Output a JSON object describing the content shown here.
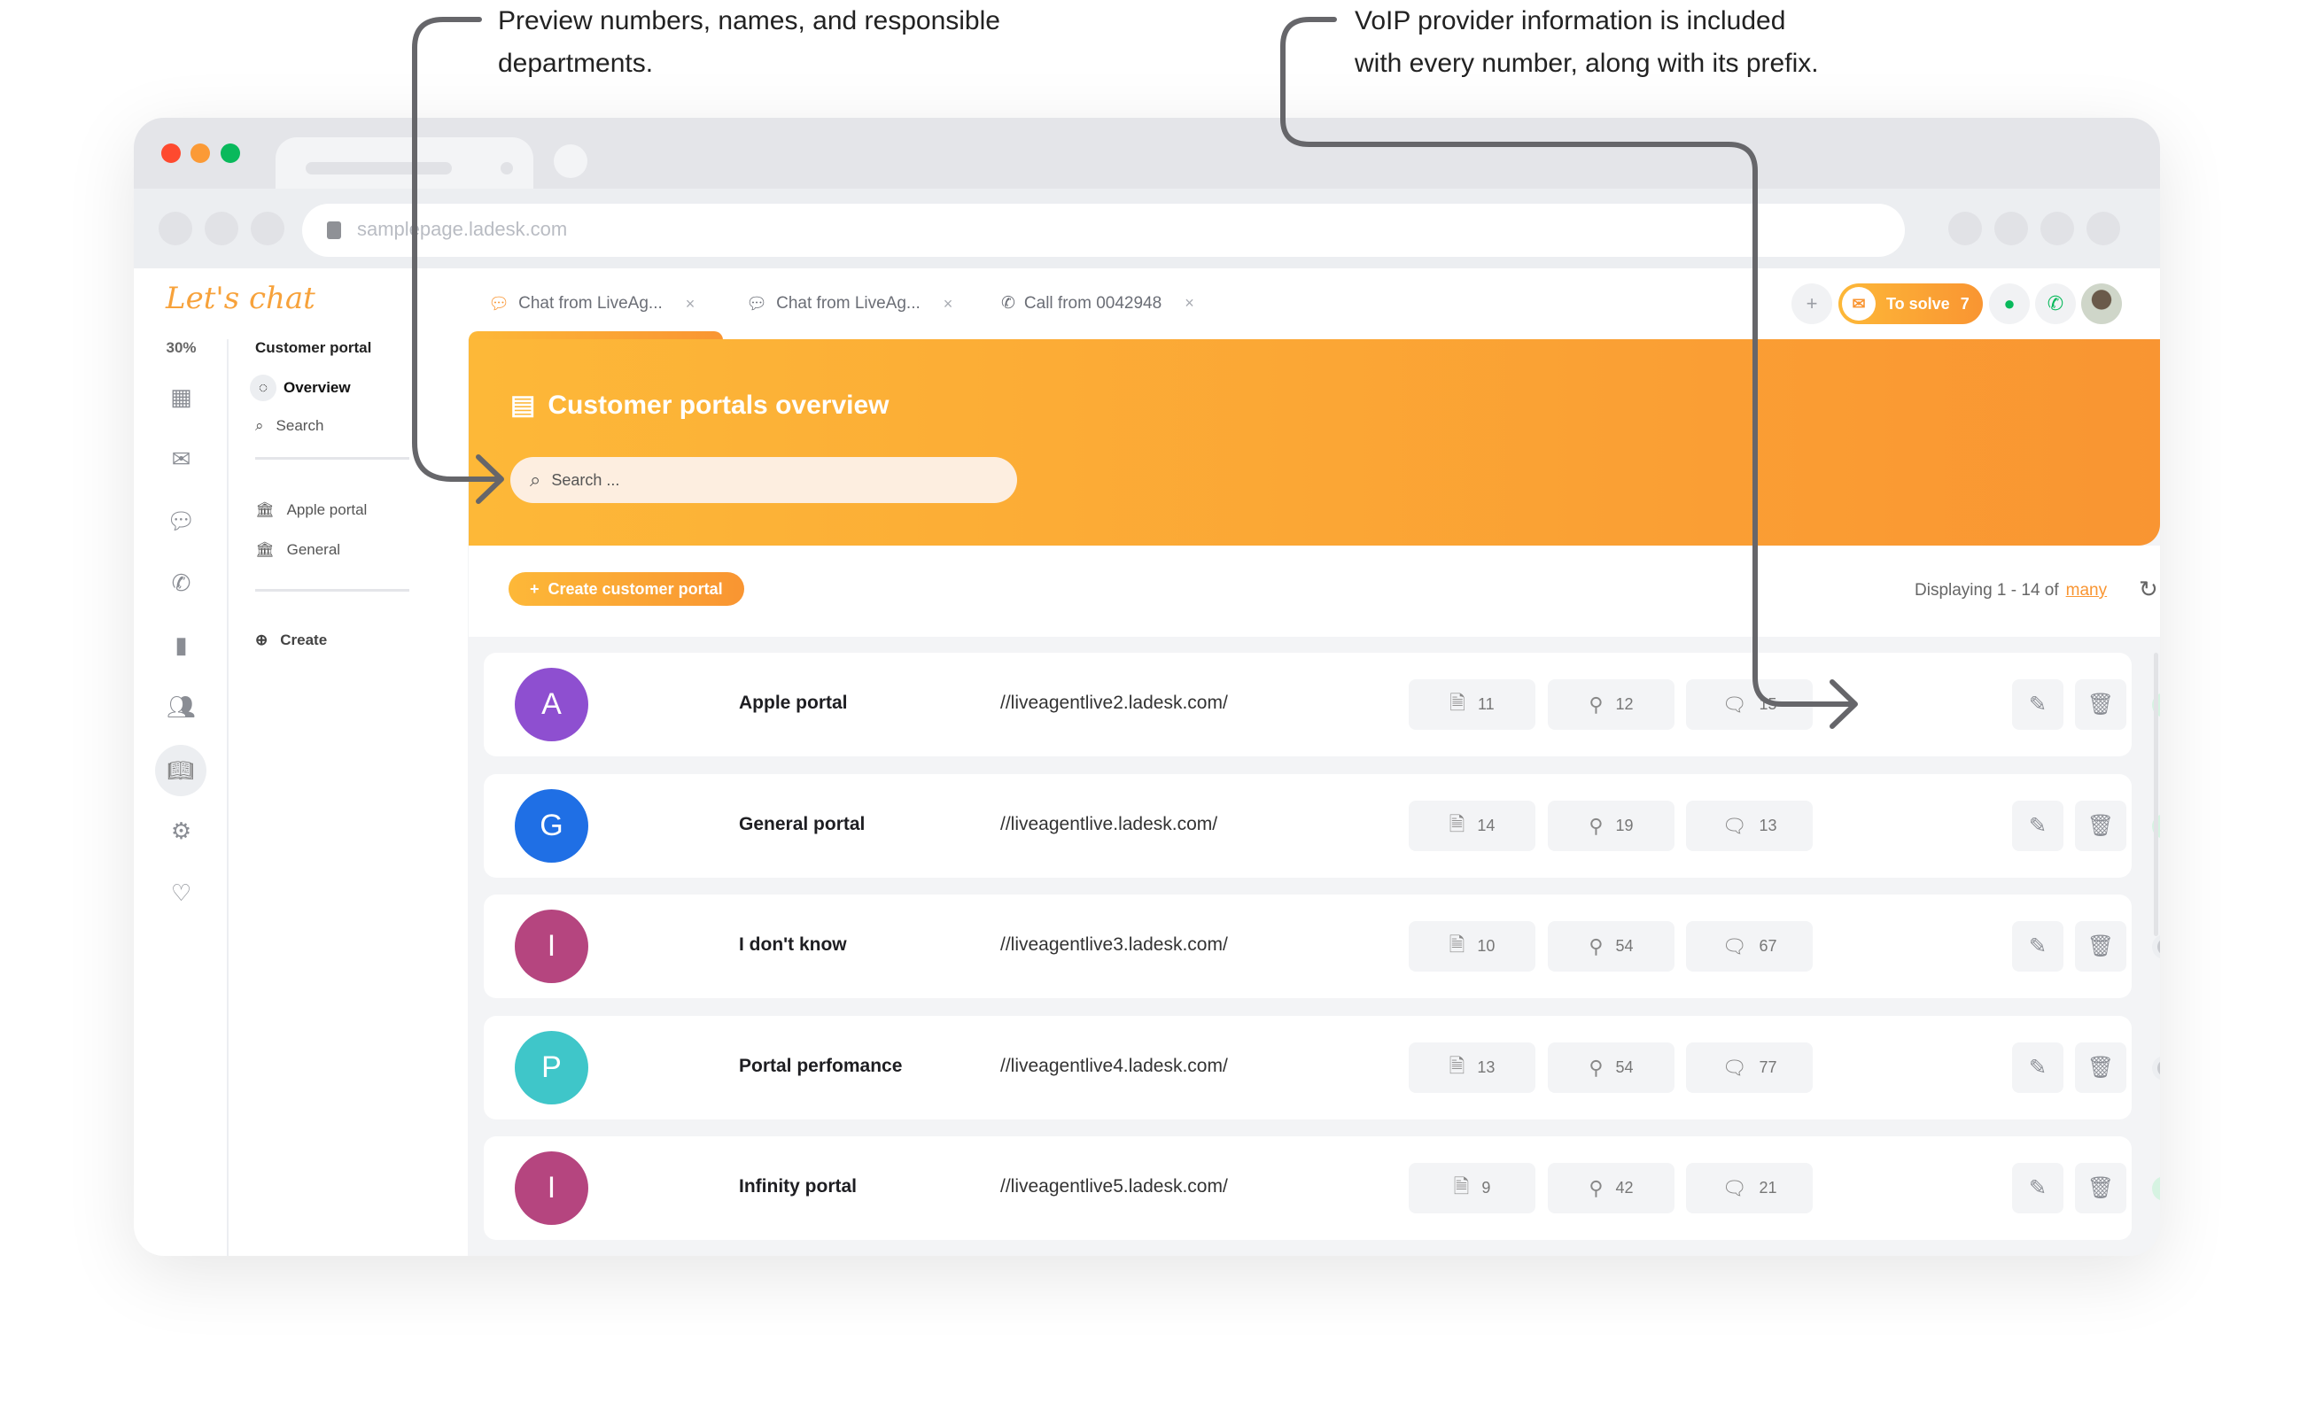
{
  "annotations": {
    "left": [
      "Preview numbers, names, and responsible",
      "departments."
    ],
    "right": [
      "VoIP provider information is included",
      "with every number, along with its prefix."
    ]
  },
  "browser": {
    "url": "samplepage.ladesk.com"
  },
  "app": {
    "logo": "Let's chat",
    "tabs": [
      {
        "label": "Chat from LiveAg...",
        "icon": "chat-icon"
      },
      {
        "label": "Chat from LiveAg...",
        "icon": "chat-icon"
      },
      {
        "label": "Call from 0042948",
        "icon": "phone-icon"
      }
    ],
    "tab_close": "×",
    "to_solve": {
      "label": "To solve",
      "count": "7"
    }
  },
  "sidebar": {
    "percent": "30%",
    "section_title": "Customer portal",
    "items": [
      {
        "label": "Overview"
      },
      {
        "label": "Search"
      }
    ],
    "portals": [
      {
        "label": "Apple portal"
      },
      {
        "label": "General"
      }
    ],
    "create": "Create"
  },
  "main": {
    "title": "Customer portals overview",
    "search_placeholder": "Search ...",
    "create_button": "Create customer portal",
    "displaying": "Displaying 1 - 14 of",
    "many": "many",
    "rows": [
      {
        "initial": "A",
        "color": "#8e4fd0",
        "name": "Apple portal",
        "url": "//liveagentlive2.ladesk.com/",
        "articles": "11",
        "ideas": "12",
        "forum": "15",
        "enabled": true
      },
      {
        "initial": "G",
        "color": "#1f6fe5",
        "name": "General portal",
        "url": "//liveagentlive.ladesk.com/",
        "articles": "14",
        "ideas": "19",
        "forum": "13",
        "enabled": true
      },
      {
        "initial": "I",
        "color": "#b5457f",
        "name": "I don't know",
        "url": "//liveagentlive3.ladesk.com/",
        "articles": "10",
        "ideas": "54",
        "forum": "67",
        "enabled": false
      },
      {
        "initial": "P",
        "color": "#3fc6c9",
        "name": "Portal perfomance",
        "url": "//liveagentlive4.ladesk.com/",
        "articles": "13",
        "ideas": "54",
        "forum": "77",
        "enabled": false
      },
      {
        "initial": "I",
        "color": "#b5457f",
        "name": "Infinity portal",
        "url": "//liveagentlive5.ladesk.com/",
        "articles": "9",
        "ideas": "42",
        "forum": "21",
        "enabled": true
      }
    ]
  },
  "colors": {
    "accent": "#f99532",
    "accent_light": "#fdb838",
    "green": "#08b95b"
  }
}
